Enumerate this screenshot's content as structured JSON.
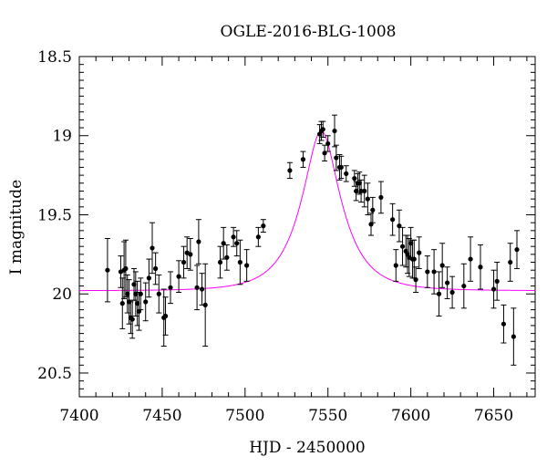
{
  "chart_data": {
    "type": "scatter",
    "title": "OGLE-2016-BLG-1008",
    "xlabel": "HJD - 2450000",
    "ylabel": "I magnitude",
    "xlim": [
      7400,
      7675
    ],
    "ylim": [
      20.65,
      18.5
    ],
    "y_inverted": true,
    "xticks": [
      7400,
      7450,
      7500,
      7550,
      7600,
      7650
    ],
    "xtick_labels": [
      "7400",
      "7450",
      "7500",
      "7550",
      "7600",
      "7650"
    ],
    "yticks": [
      18.5,
      19.0,
      19.5,
      20.0,
      20.5
    ],
    "ytick_labels": [
      "18.5",
      "19",
      "19.5",
      "20",
      "20.5"
    ],
    "grid": false,
    "legend": "none",
    "series": [
      {
        "kind": "points_with_errorbars",
        "color": "#000000",
        "points": [
          [
            7417,
            19.85,
            0.2
          ],
          [
            7425,
            19.86,
            0.1
          ],
          [
            7426,
            20.06,
            0.16
          ],
          [
            7427,
            19.85,
            0.18
          ],
          [
            7428,
            19.84,
            0.18
          ],
          [
            7429,
            20.0,
            0.12
          ],
          [
            7430,
            20.05,
            0.14
          ],
          [
            7431,
            20.15,
            0.1
          ],
          [
            7432,
            20.16,
            0.12
          ],
          [
            7433,
            19.94,
            0.1
          ],
          [
            7434,
            20.0,
            0.14
          ],
          [
            7435,
            20.06,
            0.14
          ],
          [
            7436,
            20.11,
            0.12
          ],
          [
            7437,
            20.0,
            0.1
          ],
          [
            7440,
            20.05,
            0.12
          ],
          [
            7442,
            19.9,
            0.12
          ],
          [
            7444,
            19.71,
            0.16
          ],
          [
            7446,
            19.84,
            0.1
          ],
          [
            7448,
            20.0,
            0.12
          ],
          [
            7451,
            20.15,
            0.18
          ],
          [
            7452,
            20.14,
            0.12
          ],
          [
            7455,
            19.96,
            0.1
          ],
          [
            7460,
            19.89,
            0.1
          ],
          [
            7463,
            19.8,
            0.1
          ],
          [
            7465,
            19.74,
            0.1
          ],
          [
            7467,
            19.75,
            0.1
          ],
          [
            7471,
            19.96,
            0.14
          ],
          [
            7472,
            19.67,
            0.14
          ],
          [
            7474,
            19.97,
            0.1
          ],
          [
            7476,
            20.07,
            0.26
          ],
          [
            7485,
            19.8,
            0.1
          ],
          [
            7487,
            19.68,
            0.1
          ],
          [
            7489,
            19.77,
            0.08
          ],
          [
            7493,
            19.64,
            0.06
          ],
          [
            7495,
            19.68,
            0.08
          ],
          [
            7497,
            19.8,
            0.14
          ],
          [
            7501,
            19.82,
            0.1
          ],
          [
            7508,
            19.64,
            0.06
          ],
          [
            7511,
            19.57,
            0.04
          ],
          [
            7527,
            19.22,
            0.05
          ],
          [
            7535,
            19.15,
            0.05
          ],
          [
            7545,
            18.99,
            0.06
          ],
          [
            7546,
            18.97,
            0.06
          ],
          [
            7547,
            18.96,
            0.05
          ],
          [
            7548,
            19.11,
            0.05
          ],
          [
            7550,
            19.05,
            0.05
          ],
          [
            7554,
            18.97,
            0.1
          ],
          [
            7555,
            19.14,
            0.08
          ],
          [
            7557,
            19.2,
            0.08
          ],
          [
            7558,
            19.2,
            0.07
          ],
          [
            7561,
            19.24,
            0.05
          ],
          [
            7566,
            19.27,
            0.05
          ],
          [
            7567,
            19.35,
            0.06
          ],
          [
            7568,
            19.3,
            0.06
          ],
          [
            7569,
            19.3,
            0.07
          ],
          [
            7570,
            19.35,
            0.07
          ],
          [
            7572,
            19.35,
            0.1
          ],
          [
            7574,
            19.4,
            0.1
          ],
          [
            7576,
            19.56,
            0.07
          ],
          [
            7577,
            19.47,
            0.08
          ],
          [
            7582,
            19.39,
            0.1
          ],
          [
            7589,
            19.53,
            0.1
          ],
          [
            7591,
            19.82,
            0.1
          ],
          [
            7593,
            19.57,
            0.1
          ],
          [
            7595,
            19.7,
            0.12
          ],
          [
            7597,
            19.73,
            0.1
          ],
          [
            7598,
            19.75,
            0.12
          ],
          [
            7599,
            19.77,
            0.12
          ],
          [
            7600,
            19.68,
            0.1
          ],
          [
            7601,
            19.78,
            0.12
          ],
          [
            7602,
            19.78,
            0.12
          ],
          [
            7603,
            19.91,
            0.08
          ],
          [
            7605,
            19.74,
            0.1
          ],
          [
            7610,
            19.86,
            0.1
          ],
          [
            7614,
            19.86,
            0.14
          ],
          [
            7617,
            20.0,
            0.14
          ],
          [
            7619,
            19.82,
            0.14
          ],
          [
            7622,
            19.93,
            0.1
          ],
          [
            7625,
            19.99,
            0.1
          ],
          [
            7632,
            19.95,
            0.14
          ],
          [
            7636,
            19.78,
            0.14
          ],
          [
            7642,
            19.83,
            0.14
          ],
          [
            7650,
            19.97,
            0.12
          ],
          [
            7652,
            19.92,
            0.12
          ],
          [
            7656,
            20.19,
            0.12
          ],
          [
            7660,
            19.8,
            0.12
          ],
          [
            7662,
            20.27,
            0.18
          ],
          [
            7664,
            19.72,
            0.12
          ]
        ]
      },
      {
        "kind": "model_curve",
        "color": "#ff00ff",
        "model": {
          "t0": 7546,
          "tE": 22,
          "u0": 0.42,
          "Ibase": 19.98
        }
      }
    ]
  }
}
